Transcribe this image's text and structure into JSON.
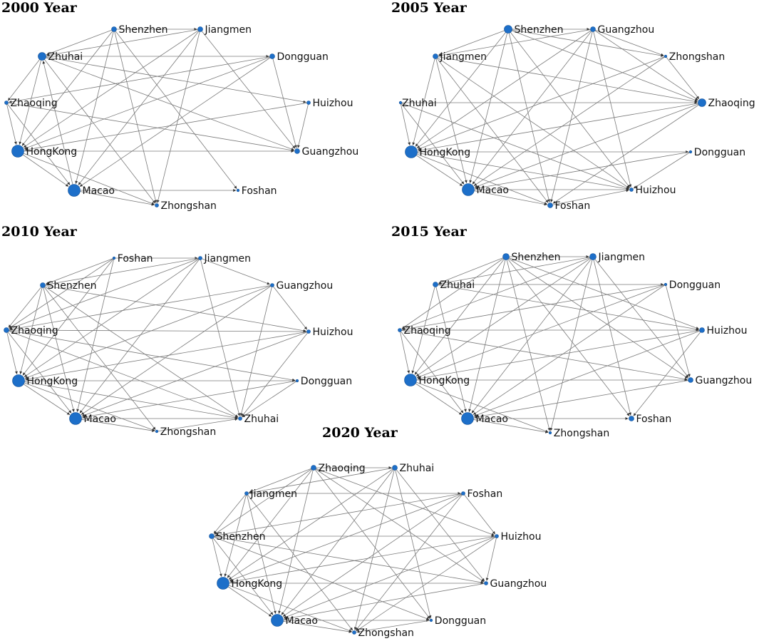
{
  "panels": [
    {
      "title": "2000 Year",
      "nodes": [
        {
          "id": "Shenzhen",
          "label": "Shenzhen",
          "weight": 2
        },
        {
          "id": "Jiangmen",
          "label": "Jiangmen",
          "weight": 2
        },
        {
          "id": "Zhuhai",
          "label": "Zhuhai",
          "weight": 4
        },
        {
          "id": "Dongguan",
          "label": "Dongguan",
          "weight": 2
        },
        {
          "id": "Zhaoqing",
          "label": "Zhaoqing",
          "weight": 1
        },
        {
          "id": "Huizhou",
          "label": "Huizhou",
          "weight": 1
        },
        {
          "id": "HongKong",
          "label": "HongKong",
          "weight": 5
        },
        {
          "id": "Guangzhou",
          "label": "Guangzhou",
          "weight": 2
        },
        {
          "id": "Macao",
          "label": "Macao",
          "weight": 5
        },
        {
          "id": "Foshan",
          "label": "Foshan",
          "weight": 0
        },
        {
          "id": "Zhongshan",
          "label": "Zhongshan",
          "weight": 1
        }
      ],
      "edges": [
        [
          "Shenzhen",
          "Zhuhai"
        ],
        [
          "Shenzhen",
          "HongKong"
        ],
        [
          "Shenzhen",
          "Macao"
        ],
        [
          "Shenzhen",
          "Zhongshan"
        ],
        [
          "Shenzhen",
          "Foshan"
        ],
        [
          "Shenzhen",
          "Jiangmen"
        ],
        [
          "Jiangmen",
          "Zhuhai"
        ],
        [
          "Jiangmen",
          "HongKong"
        ],
        [
          "Jiangmen",
          "Macao"
        ],
        [
          "Jiangmen",
          "Zhongshan"
        ],
        [
          "Jiangmen",
          "Guangzhou"
        ],
        [
          "Zhuhai",
          "Dongguan"
        ],
        [
          "Zhuhai",
          "Huizhou"
        ],
        [
          "Zhuhai",
          "Guangzhou"
        ],
        [
          "Zhuhai",
          "Zhongshan"
        ],
        [
          "Zhuhai",
          "Zhaoqing"
        ],
        [
          "Zhuhai",
          "HongKong"
        ],
        [
          "Dongguan",
          "HongKong"
        ],
        [
          "Dongguan",
          "Macao"
        ],
        [
          "Dongguan",
          "Guangzhou"
        ],
        [
          "Dongguan",
          "Zhaoqing"
        ],
        [
          "Zhaoqing",
          "HongKong"
        ],
        [
          "Zhaoqing",
          "Guangzhou"
        ],
        [
          "Zhaoqing",
          "Macao"
        ],
        [
          "Huizhou",
          "HongKong"
        ],
        [
          "Huizhou",
          "Guangzhou"
        ],
        [
          "HongKong",
          "Guangzhou"
        ],
        [
          "HongKong",
          "Macao"
        ],
        [
          "HongKong",
          "Zhongshan"
        ],
        [
          "Macao",
          "Foshan"
        ],
        [
          "Macao",
          "Zhongshan"
        ],
        [
          "Macao",
          "Zhuhai"
        ]
      ]
    },
    {
      "title": "2005 Year",
      "nodes": [
        {
          "id": "Shenzhen",
          "label": "Shenzhen",
          "weight": 4
        },
        {
          "id": "Guangzhou",
          "label": "Guangzhou",
          "weight": 2
        },
        {
          "id": "Jiangmen",
          "label": "Jiangmen",
          "weight": 2
        },
        {
          "id": "Zhongshan",
          "label": "Zhongshan",
          "weight": 0
        },
        {
          "id": "Zhuhai",
          "label": "Zhuhai",
          "weight": 0
        },
        {
          "id": "Zhaoqing",
          "label": "Zhaoqing",
          "weight": 4
        },
        {
          "id": "HongKong",
          "label": "HongKong",
          "weight": 5
        },
        {
          "id": "Dongguan",
          "label": "Dongguan",
          "weight": 0
        },
        {
          "id": "Macao",
          "label": "Macao",
          "weight": 5
        },
        {
          "id": "Huizhou",
          "label": "Huizhou",
          "weight": 1
        },
        {
          "id": "Foshan",
          "label": "Foshan",
          "weight": 2
        }
      ],
      "edges": [
        [
          "Shenzhen",
          "Guangzhou"
        ],
        [
          "Shenzhen",
          "Jiangmen"
        ],
        [
          "Shenzhen",
          "HongKong"
        ],
        [
          "Shenzhen",
          "Macao"
        ],
        [
          "Shenzhen",
          "Zhaoqing"
        ],
        [
          "Shenzhen",
          "Huizhou"
        ],
        [
          "Shenzhen",
          "Foshan"
        ],
        [
          "Shenzhen",
          "Zhongshan"
        ],
        [
          "Guangzhou",
          "HongKong"
        ],
        [
          "Guangzhou",
          "Macao"
        ],
        [
          "Guangzhou",
          "Zhaoqing"
        ],
        [
          "Guangzhou",
          "Huizhou"
        ],
        [
          "Guangzhou",
          "Foshan"
        ],
        [
          "Guangzhou",
          "Zhongshan"
        ],
        [
          "Guangzhou",
          "Jiangmen"
        ],
        [
          "Jiangmen",
          "HongKong"
        ],
        [
          "Jiangmen",
          "Macao"
        ],
        [
          "Jiangmen",
          "Zhaoqing"
        ],
        [
          "Jiangmen",
          "Huizhou"
        ],
        [
          "Jiangmen",
          "Foshan"
        ],
        [
          "Zhongshan",
          "HongKong"
        ],
        [
          "Zhongshan",
          "Zhaoqing"
        ],
        [
          "Zhongshan",
          "Macao"
        ],
        [
          "Zhuhai",
          "Zhaoqing"
        ],
        [
          "Zhuhai",
          "HongKong"
        ],
        [
          "Zhuhai",
          "Macao"
        ],
        [
          "Zhuhai",
          "Huizhou"
        ],
        [
          "Zhaoqing",
          "HongKong"
        ],
        [
          "Zhaoqing",
          "Macao"
        ],
        [
          "Zhaoqing",
          "Foshan"
        ],
        [
          "HongKong",
          "Dongguan"
        ],
        [
          "HongKong",
          "Huizhou"
        ],
        [
          "HongKong",
          "Foshan"
        ],
        [
          "HongKong",
          "Macao"
        ],
        [
          "Dongguan",
          "Macao"
        ],
        [
          "Dongguan",
          "Huizhou"
        ],
        [
          "Macao",
          "Huizhou"
        ],
        [
          "Macao",
          "Foshan"
        ],
        [
          "Foshan",
          "Huizhou"
        ]
      ]
    },
    {
      "title": "2010 Year",
      "nodes": [
        {
          "id": "Foshan",
          "label": "Foshan",
          "weight": 0
        },
        {
          "id": "Jiangmen",
          "label": "Jiangmen",
          "weight": 1
        },
        {
          "id": "Shenzhen",
          "label": "Shenzhen",
          "weight": 2
        },
        {
          "id": "Guangzhou",
          "label": "Guangzhou",
          "weight": 1
        },
        {
          "id": "Zhaoqing",
          "label": "Zhaoqing",
          "weight": 2
        },
        {
          "id": "Huizhou",
          "label": "Huizhou",
          "weight": 1
        },
        {
          "id": "HongKong",
          "label": "HongKong",
          "weight": 5
        },
        {
          "id": "Dongguan",
          "label": "Dongguan",
          "weight": 0
        },
        {
          "id": "Macao",
          "label": "Macao",
          "weight": 5
        },
        {
          "id": "Zhuhai",
          "label": "Zhuhai",
          "weight": 1
        },
        {
          "id": "Zhongshan",
          "label": "Zhongshan",
          "weight": 0
        }
      ],
      "edges": [
        [
          "Foshan",
          "Jiangmen"
        ],
        [
          "Foshan",
          "HongKong"
        ],
        [
          "Foshan",
          "Macao"
        ],
        [
          "Foshan",
          "Zhaoqing"
        ],
        [
          "Foshan",
          "Shenzhen"
        ],
        [
          "Jiangmen",
          "Shenzhen"
        ],
        [
          "Jiangmen",
          "Zhaoqing"
        ],
        [
          "Jiangmen",
          "HongKong"
        ],
        [
          "Jiangmen",
          "Macao"
        ],
        [
          "Jiangmen",
          "Zhuhai"
        ],
        [
          "Jiangmen",
          "Guangzhou"
        ],
        [
          "Shenzhen",
          "Huizhou"
        ],
        [
          "Shenzhen",
          "HongKong"
        ],
        [
          "Shenzhen",
          "Macao"
        ],
        [
          "Shenzhen",
          "Zhuhai"
        ],
        [
          "Shenzhen",
          "Zhongshan"
        ],
        [
          "Shenzhen",
          "Zhaoqing"
        ],
        [
          "Guangzhou",
          "HongKong"
        ],
        [
          "Guangzhou",
          "Macao"
        ],
        [
          "Guangzhou",
          "Zhaoqing"
        ],
        [
          "Guangzhou",
          "Zhuhai"
        ],
        [
          "Guangzhou",
          "Huizhou"
        ],
        [
          "Zhaoqing",
          "Huizhou"
        ],
        [
          "Zhaoqing",
          "HongKong"
        ],
        [
          "Zhaoqing",
          "Macao"
        ],
        [
          "Zhaoqing",
          "Zhuhai"
        ],
        [
          "Zhaoqing",
          "Dongguan"
        ],
        [
          "Huizhou",
          "HongKong"
        ],
        [
          "Huizhou",
          "Macao"
        ],
        [
          "Huizhou",
          "Zhuhai"
        ],
        [
          "HongKong",
          "Dongguan"
        ],
        [
          "HongKong",
          "Zhuhai"
        ],
        [
          "HongKong",
          "Macao"
        ],
        [
          "HongKong",
          "Zhongshan"
        ],
        [
          "Dongguan",
          "Macao"
        ],
        [
          "Dongguan",
          "Zhuhai"
        ],
        [
          "Macao",
          "Zhuhai"
        ],
        [
          "Macao",
          "Zhongshan"
        ],
        [
          "Zhongshan",
          "Zhuhai"
        ]
      ]
    },
    {
      "title": "2015 Year",
      "nodes": [
        {
          "id": "Shenzhen",
          "label": "Shenzhen",
          "weight": 3
        },
        {
          "id": "Jiangmen",
          "label": "Jiangmen",
          "weight": 3
        },
        {
          "id": "Zhuhai",
          "label": "Zhuhai",
          "weight": 2
        },
        {
          "id": "Dongguan",
          "label": "Dongguan",
          "weight": 0
        },
        {
          "id": "Zhaoqing",
          "label": "Zhaoqing",
          "weight": 1
        },
        {
          "id": "Huizhou",
          "label": "Huizhou",
          "weight": 2
        },
        {
          "id": "HongKong",
          "label": "HongKong",
          "weight": 5
        },
        {
          "id": "Guangzhou",
          "label": "Guangzhou",
          "weight": 2
        },
        {
          "id": "Macao",
          "label": "Macao",
          "weight": 5
        },
        {
          "id": "Foshan",
          "label": "Foshan",
          "weight": 2
        },
        {
          "id": "Zhongshan",
          "label": "Zhongshan",
          "weight": 0
        }
      ],
      "edges": [
        [
          "Shenzhen",
          "Jiangmen"
        ],
        [
          "Shenzhen",
          "Zhuhai"
        ],
        [
          "Shenzhen",
          "HongKong"
        ],
        [
          "Shenzhen",
          "Macao"
        ],
        [
          "Shenzhen",
          "Guangzhou"
        ],
        [
          "Shenzhen",
          "Huizhou"
        ],
        [
          "Shenzhen",
          "Foshan"
        ],
        [
          "Shenzhen",
          "Zhongshan"
        ],
        [
          "Shenzhen",
          "Zhaoqing"
        ],
        [
          "Jiangmen",
          "Zhuhai"
        ],
        [
          "Jiangmen",
          "Zhaoqing"
        ],
        [
          "Jiangmen",
          "HongKong"
        ],
        [
          "Jiangmen",
          "Macao"
        ],
        [
          "Jiangmen",
          "Guangzhou"
        ],
        [
          "Jiangmen",
          "Foshan"
        ],
        [
          "Jiangmen",
          "Zhongshan"
        ],
        [
          "Zhuhai",
          "Dongguan"
        ],
        [
          "Zhuhai",
          "HongKong"
        ],
        [
          "Zhuhai",
          "Macao"
        ],
        [
          "Zhuhai",
          "Huizhou"
        ],
        [
          "Dongguan",
          "HongKong"
        ],
        [
          "Dongguan",
          "Macao"
        ],
        [
          "Dongguan",
          "Guangzhou"
        ],
        [
          "Dongguan",
          "Zhaoqing"
        ],
        [
          "Zhaoqing",
          "Huizhou"
        ],
        [
          "Zhaoqing",
          "HongKong"
        ],
        [
          "Zhaoqing",
          "Macao"
        ],
        [
          "Zhaoqing",
          "Guangzhou"
        ],
        [
          "Huizhou",
          "HongKong"
        ],
        [
          "Huizhou",
          "Macao"
        ],
        [
          "Huizhou",
          "Foshan"
        ],
        [
          "HongKong",
          "Guangzhou"
        ],
        [
          "HongKong",
          "Macao"
        ],
        [
          "HongKong",
          "Zhongshan"
        ],
        [
          "Guangzhou",
          "Macao"
        ],
        [
          "Macao",
          "Foshan"
        ],
        [
          "Macao",
          "Zhongshan"
        ]
      ]
    },
    {
      "title": "2020 Year",
      "nodes": [
        {
          "id": "Zhaoqing",
          "label": "Zhaoqing",
          "weight": 2
        },
        {
          "id": "Zhuhai",
          "label": "Zhuhai",
          "weight": 2
        },
        {
          "id": "Jiangmen",
          "label": "Jiangmen",
          "weight": 1
        },
        {
          "id": "Foshan",
          "label": "Foshan",
          "weight": 1
        },
        {
          "id": "Shenzhen",
          "label": "Shenzhen",
          "weight": 2
        },
        {
          "id": "Huizhou",
          "label": "Huizhou",
          "weight": 1
        },
        {
          "id": "HongKong",
          "label": "HongKong",
          "weight": 5
        },
        {
          "id": "Guangzhou",
          "label": "Guangzhou",
          "weight": 1
        },
        {
          "id": "Macao",
          "label": "Macao",
          "weight": 5
        },
        {
          "id": "Dongguan",
          "label": "Dongguan",
          "weight": 0
        },
        {
          "id": "Zhongshan",
          "label": "Zhongshan",
          "weight": 1
        }
      ],
      "edges": [
        [
          "Zhaoqing",
          "Zhuhai"
        ],
        [
          "Zhaoqing",
          "Jiangmen"
        ],
        [
          "Zhaoqing",
          "Shenzhen"
        ],
        [
          "Zhaoqing",
          "HongKong"
        ],
        [
          "Zhaoqing",
          "Macao"
        ],
        [
          "Zhaoqing",
          "Huizhou"
        ],
        [
          "Zhaoqing",
          "Guangzhou"
        ],
        [
          "Zhaoqing",
          "Dongguan"
        ],
        [
          "Zhuhai",
          "Jiangmen"
        ],
        [
          "Zhuhai",
          "HongKong"
        ],
        [
          "Zhuhai",
          "Macao"
        ],
        [
          "Zhuhai",
          "Zhongshan"
        ],
        [
          "Zhuhai",
          "Guangzhou"
        ],
        [
          "Zhuhai",
          "Dongguan"
        ],
        [
          "Jiangmen",
          "Foshan"
        ],
        [
          "Jiangmen",
          "Shenzhen"
        ],
        [
          "Jiangmen",
          "HongKong"
        ],
        [
          "Jiangmen",
          "Macao"
        ],
        [
          "Jiangmen",
          "Zhongshan"
        ],
        [
          "Foshan",
          "Shenzhen"
        ],
        [
          "Foshan",
          "HongKong"
        ],
        [
          "Foshan",
          "Macao"
        ],
        [
          "Foshan",
          "Huizhou"
        ],
        [
          "Foshan",
          "Zhongshan"
        ],
        [
          "Shenzhen",
          "Huizhou"
        ],
        [
          "Shenzhen",
          "HongKong"
        ],
        [
          "Shenzhen",
          "Macao"
        ],
        [
          "Shenzhen",
          "Guangzhou"
        ],
        [
          "Shenzhen",
          "Dongguan"
        ],
        [
          "Huizhou",
          "HongKong"
        ],
        [
          "Huizhou",
          "Macao"
        ],
        [
          "Huizhou",
          "Guangzhou"
        ],
        [
          "Huizhou",
          "Zhongshan"
        ],
        [
          "HongKong",
          "Guangzhou"
        ],
        [
          "HongKong",
          "Macao"
        ],
        [
          "HongKong",
          "Zhongshan"
        ],
        [
          "Guangzhou",
          "Macao"
        ],
        [
          "Macao",
          "Dongguan"
        ],
        [
          "Macao",
          "Zhongshan"
        ],
        [
          "Dongguan",
          "Zhongshan"
        ]
      ]
    }
  ]
}
